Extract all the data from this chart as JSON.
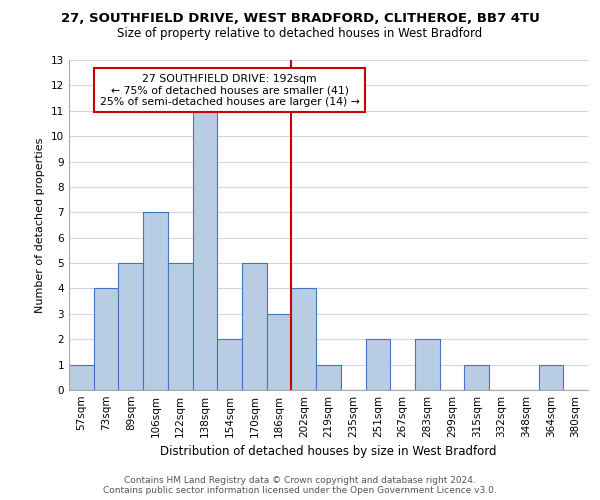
{
  "title_line1": "27, SOUTHFIELD DRIVE, WEST BRADFORD, CLITHEROE, BB7 4TU",
  "title_line2": "Size of property relative to detached houses in West Bradford",
  "xlabel": "Distribution of detached houses by size in West Bradford",
  "ylabel": "Number of detached properties",
  "bar_labels": [
    "57sqm",
    "73sqm",
    "89sqm",
    "106sqm",
    "122sqm",
    "138sqm",
    "154sqm",
    "170sqm",
    "186sqm",
    "202sqm",
    "219sqm",
    "235sqm",
    "251sqm",
    "267sqm",
    "283sqm",
    "299sqm",
    "315sqm",
    "332sqm",
    "348sqm",
    "364sqm",
    "380sqm"
  ],
  "bar_values": [
    1,
    4,
    5,
    7,
    5,
    11,
    2,
    5,
    3,
    4,
    1,
    0,
    2,
    0,
    2,
    0,
    1,
    0,
    0,
    1,
    0
  ],
  "bar_color": "#b8cce4",
  "bar_edge_color": "#4472c4",
  "property_line_color": "#cc0000",
  "annotation_title": "27 SOUTHFIELD DRIVE: 192sqm",
  "annotation_line1": "← 75% of detached houses are smaller (41)",
  "annotation_line2": "25% of semi-detached houses are larger (14) →",
  "annotation_box_color": "#ffffff",
  "annotation_box_edge": "#cc0000",
  "ylim": [
    0,
    13
  ],
  "yticks": [
    0,
    1,
    2,
    3,
    4,
    5,
    6,
    7,
    8,
    9,
    10,
    11,
    12,
    13
  ],
  "footer_line1": "Contains HM Land Registry data © Crown copyright and database right 2024.",
  "footer_line2": "Contains public sector information licensed under the Open Government Licence v3.0.",
  "bg_color": "#ffffff",
  "grid_color": "#d0d8e8",
  "title_fontsize": 9.5,
  "subtitle_fontsize": 8.5,
  "ylabel_fontsize": 8,
  "xlabel_fontsize": 8.5,
  "tick_fontsize": 7.5,
  "annotation_fontsize": 7.8,
  "footer_fontsize": 6.5
}
